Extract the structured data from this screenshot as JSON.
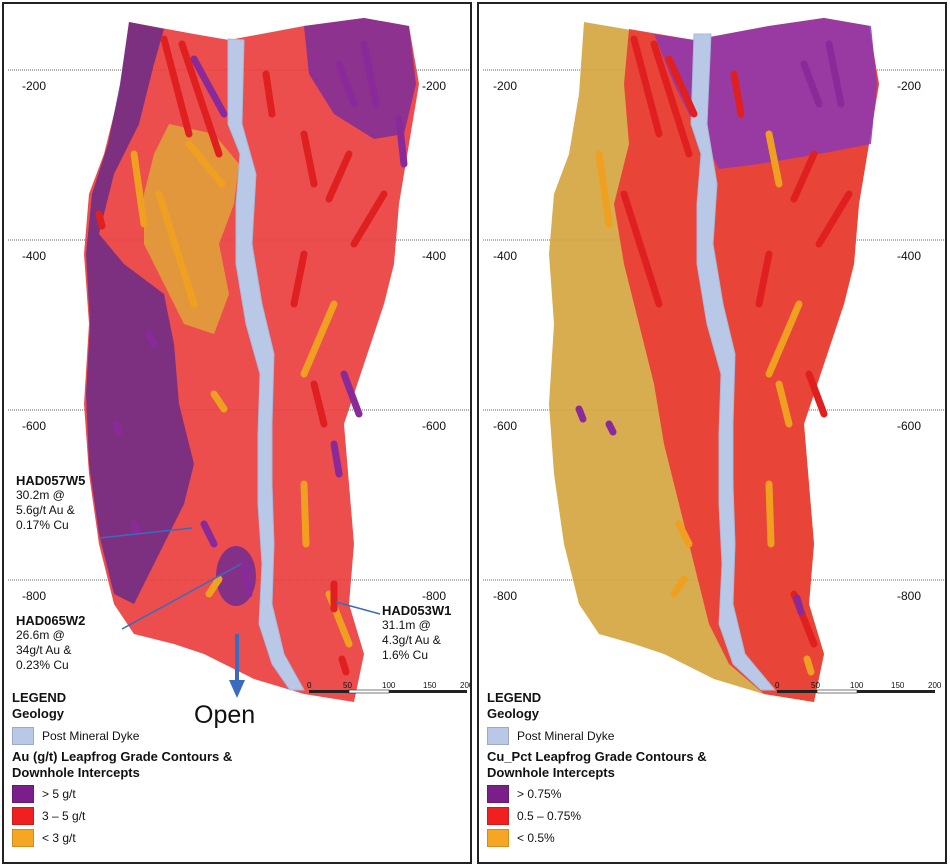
{
  "colors": {
    "purple": "#7a2e8e",
    "red": "#f02828",
    "orange": "#f5a623",
    "dyke": "#b8c8e6",
    "high_left_fill": "#6e2a8c",
    "mid_fill": "#ef3030",
    "low_fill": "#d9a232"
  },
  "left_panel": {
    "levels": [
      "-200",
      "-400",
      "-600",
      "-800"
    ],
    "callouts": {
      "w5": {
        "hole": "HAD057W5",
        "l1": "30.2m @",
        "l2": "5.6g/t Au &",
        "l3": "0.17% Cu"
      },
      "w2": {
        "hole": "HAD065W2",
        "l1": "26.6m @",
        "l2": "34g/t Au &",
        "l3": "0.23% Cu"
      },
      "w1": {
        "hole": "HAD053W1",
        "l1": "31.1m @",
        "l2": "4.3g/t Au &",
        "l3": "1.6% Cu"
      }
    },
    "open_label": "Open",
    "scale": [
      "0",
      "50",
      "100",
      "150",
      "200"
    ],
    "legend": {
      "title": "LEGEND",
      "geology": "Geology",
      "dyke": "Post Mineral Dyke",
      "grade_heading_1": "Au (g/t) Leapfrog Grade Contours &",
      "grade_heading_2": "Downhole Intercepts",
      "high": "> 5 g/t",
      "mid": "3 – 5 g/t",
      "low": "< 3 g/t"
    }
  },
  "right_panel": {
    "levels": [
      "-200",
      "-400",
      "-600",
      "-800"
    ],
    "scale": [
      "0",
      "50",
      "100",
      "150",
      "200"
    ],
    "legend": {
      "title": "LEGEND",
      "geology": "Geology",
      "dyke": "Post Mineral Dyke",
      "grade_heading_1": "Cu_Pct Leapfrog Grade Contours &",
      "grade_heading_2": "Downhole Intercepts",
      "high": "> 0.75%",
      "mid": "0.5 – 0.75%",
      "low": "< 0.5%"
    }
  }
}
